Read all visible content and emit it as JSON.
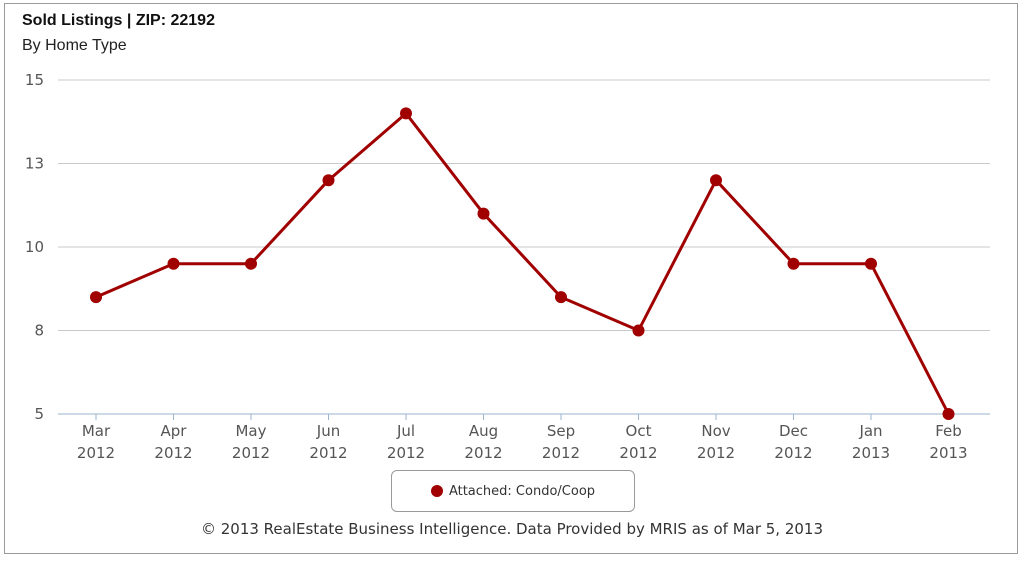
{
  "chart_data": {
    "type": "line",
    "title": "Sold Listings | ZIP: 22192",
    "subtitle": "By Home Type",
    "categories": [
      [
        "Mar",
        "2012"
      ],
      [
        "Apr",
        "2012"
      ],
      [
        "May",
        "2012"
      ],
      [
        "Jun",
        "2012"
      ],
      [
        "Jul",
        "2012"
      ],
      [
        "Aug",
        "2012"
      ],
      [
        "Sep",
        "2012"
      ],
      [
        "Oct",
        "2012"
      ],
      [
        "Nov",
        "2012"
      ],
      [
        "Dec",
        "2012"
      ],
      [
        "Jan",
        "2013"
      ],
      [
        "Feb",
        "2013"
      ]
    ],
    "series": [
      {
        "name": "Attached: Condo/Coop",
        "color": "#a00000",
        "values": [
          8.5,
          9.5,
          9.5,
          12,
          14,
          11,
          8.5,
          7.5,
          12,
          9.5,
          9.5,
          5
        ]
      }
    ],
    "ylim": [
      5,
      15
    ],
    "y_ticks": [
      5,
      7.5,
      10,
      12.5,
      15
    ],
    "y_tick_labels": [
      "5",
      "8",
      "10",
      "13",
      "15"
    ],
    "grid": true,
    "legend_position": "bottom"
  },
  "footer": "© 2013 RealEstate Business Intelligence. Data Provided by MRIS as of Mar 5, 2013"
}
